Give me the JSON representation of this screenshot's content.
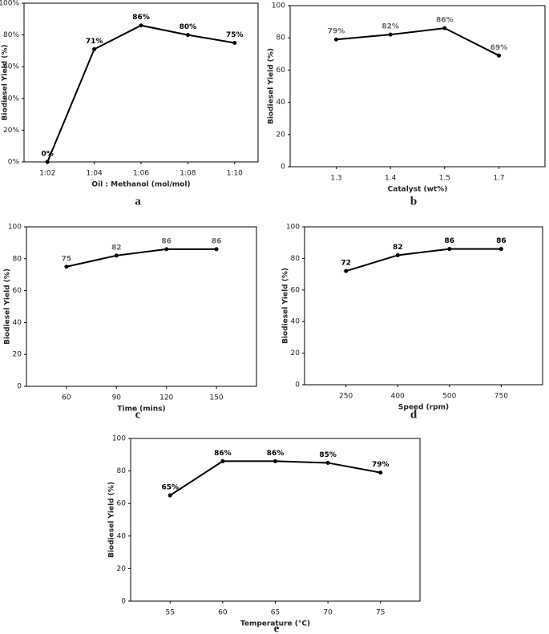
{
  "chart_data": [
    {
      "type": "line",
      "label": "a",
      "x_label": "Oil : Methanol (mol/mol)",
      "y_label": "Biodiesel Yield (%)",
      "categories": [
        "1:02",
        "1:04",
        "1:06",
        "1:08",
        "1:10"
      ],
      "values": [
        0,
        71,
        86,
        80,
        75
      ],
      "value_labels": [
        "0%",
        "71%",
        "86%",
        "80%",
        "75%"
      ],
      "color": "#000000",
      "ylim": [
        0,
        100
      ],
      "yticks": [
        {
          "value": 0,
          "label": "0%"
        },
        {
          "value": 20,
          "label": "20%"
        },
        {
          "value": 40,
          "label": "40%"
        },
        {
          "value": 60,
          "label": "60%"
        },
        {
          "value": 80,
          "label": "80%"
        },
        {
          "value": 100,
          "label": "100%"
        }
      ]
    },
    {
      "type": "line",
      "label": "b",
      "x_label": "Catalyst (wt%)",
      "y_label": "Biodiesel Yield (%)",
      "categories": [
        "1.3",
        "1.4",
        "1.5",
        "1.7"
      ],
      "values": [
        79,
        82,
        86,
        69
      ],
      "value_labels": [
        "79%",
        "82%",
        "86%",
        "69%"
      ],
      "color": "#000000",
      "ylim": [
        0,
        100
      ],
      "yticks": [
        0,
        20,
        40,
        60,
        80,
        100
      ]
    },
    {
      "type": "line",
      "label": "c",
      "x_label": "Time (mins)",
      "y_label": "Biodiesel Yield (%)",
      "categories": [
        "60",
        "90",
        "120",
        "150"
      ],
      "values": [
        75,
        82,
        86,
        86
      ],
      "color": "#000000",
      "ylim": [
        0,
        100
      ],
      "yticks": [
        0,
        20,
        40,
        60,
        80,
        100
      ]
    },
    {
      "type": "line",
      "label": "d",
      "x_label": "Speed (rpm)",
      "y_label": "Biodiesel Yield (%)",
      "categories": [
        "250",
        "400",
        "500",
        "750"
      ],
      "values": [
        72,
        82,
        86,
        86
      ],
      "color": "#000000",
      "ylim": [
        0,
        100
      ],
      "yticks": [
        0,
        20,
        40,
        60,
        80,
        100
      ]
    },
    {
      "type": "line",
      "label": "e",
      "x_label": "Temperature (°C)",
      "y_label": "Biodiesel Yield (%)",
      "categories": [
        "55",
        "60",
        "65",
        "70",
        "75"
      ],
      "values": [
        65,
        86,
        86,
        85,
        79
      ],
      "value_labels": [
        "65%",
        "86%",
        "86%",
        "85%",
        "79%"
      ],
      "color": "#000000",
      "ylim": [
        0,
        100
      ],
      "yticks": [
        0,
        20,
        40,
        60,
        80,
        100
      ]
    }
  ]
}
